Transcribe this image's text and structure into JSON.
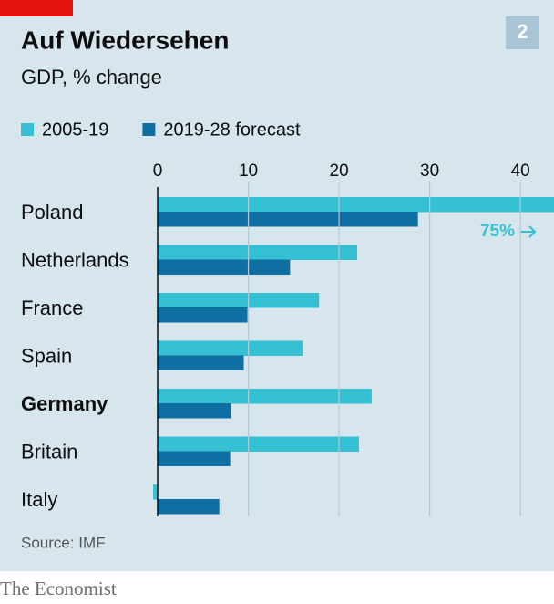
{
  "chart_data": {
    "type": "bar",
    "orientation": "horizontal",
    "badge": "2",
    "title": "Auf Wiedersehen",
    "subtitle": "GDP, % change",
    "source": "Source: IMF",
    "brand": "The Economist",
    "categories": [
      "Poland",
      "Netherlands",
      "France",
      "Spain",
      "Germany",
      "Britain",
      "Italy"
    ],
    "bold_category": "Germany",
    "series": [
      {
        "name": "2005-19",
        "color": "#36c0d4",
        "values": [
          75,
          22.0,
          17.8,
          16.0,
          23.6,
          22.2,
          -0.5
        ],
        "value_labels": [
          "75%",
          null,
          null,
          null,
          null,
          null,
          null
        ]
      },
      {
        "name": "2019-28 forecast",
        "color": "#0f6fa3",
        "values": [
          28.7,
          14.6,
          9.9,
          9.5,
          8.1,
          8.0,
          6.8
        ]
      }
    ],
    "xlim": [
      0,
      43.7
    ],
    "xticks": [
      0,
      10,
      20,
      30,
      40
    ],
    "grid": true
  }
}
